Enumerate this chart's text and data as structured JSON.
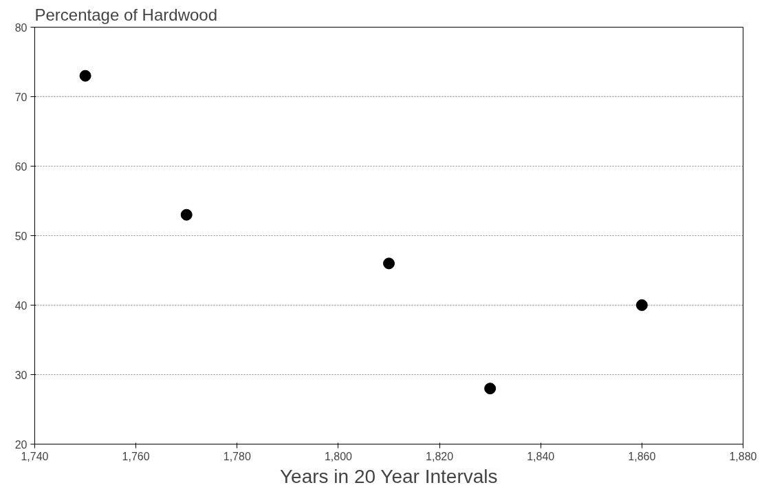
{
  "chart_data": {
    "type": "scatter",
    "title": "Percentage of Hardwood",
    "xlabel": "Years in 20 Year Intervals",
    "x": [
      1750,
      1770,
      1810,
      1830,
      1860
    ],
    "series": [
      {
        "color": "#000000",
        "values": [
          73,
          53,
          46,
          28,
          40
        ]
      }
    ],
    "xlim": [
      1740,
      1880
    ],
    "xticks": [
      {
        "value": 1740,
        "label": "1,740"
      },
      {
        "value": 1760,
        "label": "1,760"
      },
      {
        "value": 1780,
        "label": "1,780"
      },
      {
        "value": 1800,
        "label": "1,800"
      },
      {
        "value": 1820,
        "label": "1,820"
      },
      {
        "value": 1840,
        "label": "1,840"
      },
      {
        "value": 1860,
        "label": "1,860"
      },
      {
        "value": 1880,
        "label": "1,880"
      }
    ],
    "ylim": [
      20,
      80
    ],
    "yticks": [
      20,
      30,
      40,
      50,
      60,
      70,
      80
    ],
    "grid": "y",
    "marker": "circle"
  }
}
